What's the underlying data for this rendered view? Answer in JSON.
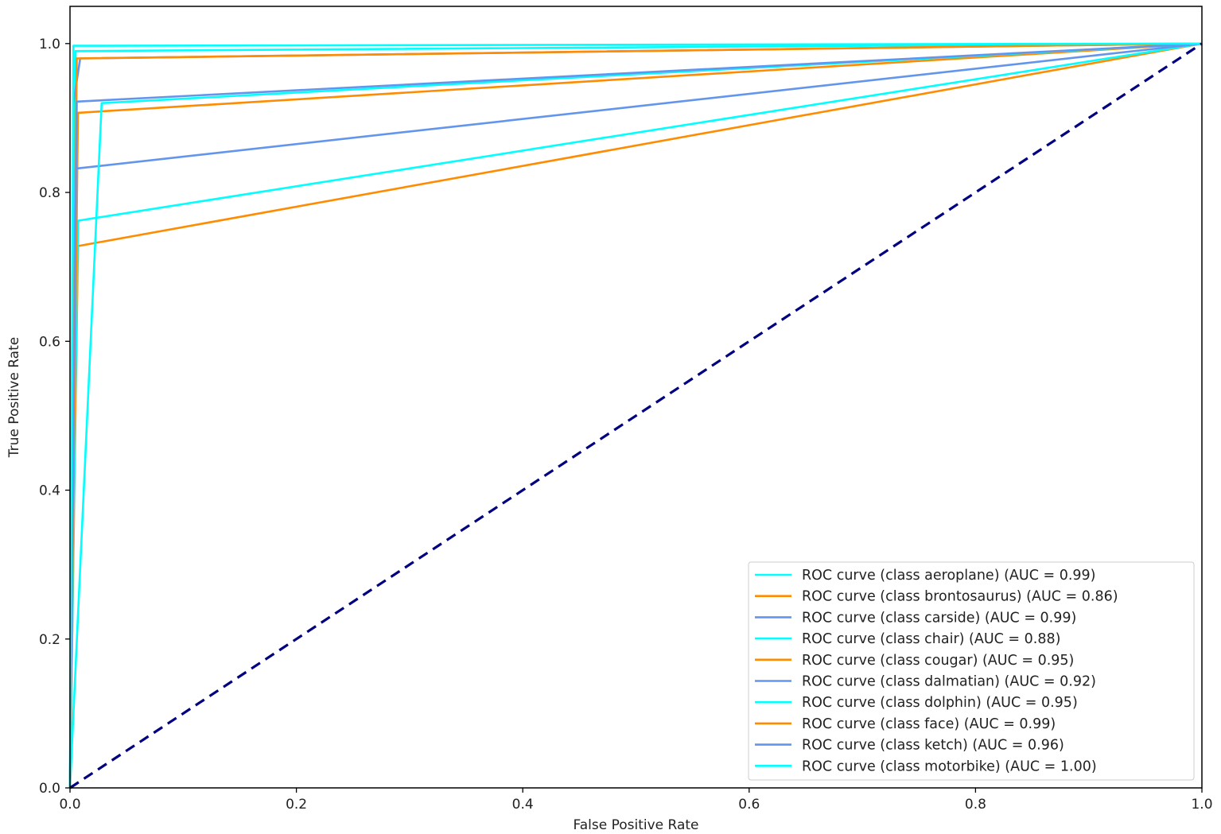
{
  "chart_data": {
    "type": "line",
    "title": "",
    "xlabel": "False Positive Rate",
    "ylabel": "True Positive Rate",
    "xlim": [
      0.0,
      1.0
    ],
    "ylim": [
      0.0,
      1.05
    ],
    "x_ticks": [
      "0.0",
      "0.2",
      "0.4",
      "0.6",
      "0.8",
      "1.0"
    ],
    "y_ticks": [
      "0.0",
      "0.2",
      "0.4",
      "0.6",
      "0.8",
      "1.0"
    ],
    "grid": false,
    "legend_position": "lower-right",
    "series": [
      {
        "name": "ROC curve (class aeroplane) (AUC = 0.99)",
        "color": "#00FFFF",
        "x": [
          0.0,
          0.0,
          0.005,
          1.0
        ],
        "y": [
          0.0,
          0.0,
          0.99,
          1.0
        ]
      },
      {
        "name": "ROC curve (class brontosaurus) (AUC = 0.86)",
        "color": "#FF8C00",
        "x": [
          0.0,
          0.007,
          1.0
        ],
        "y": [
          0.0,
          0.728,
          1.0
        ]
      },
      {
        "name": "ROC curve (class carside) (AUC = 0.99)",
        "color": "#6495ED",
        "x": [
          0.0,
          0.003,
          0.009,
          1.0
        ],
        "y": [
          0.0,
          0.92,
          0.98,
          1.0
        ]
      },
      {
        "name": "ROC curve (class chair) (AUC = 0.88)",
        "color": "#00FFFF",
        "x": [
          0.0,
          0.007,
          1.0
        ],
        "y": [
          0.0,
          0.762,
          1.0
        ]
      },
      {
        "name": "ROC curve (class cougar) (AUC = 0.95)",
        "color": "#FF8C00",
        "x": [
          0.0,
          0.007,
          1.0
        ],
        "y": [
          0.0,
          0.907,
          1.0
        ]
      },
      {
        "name": "ROC curve (class dalmatian) (AUC = 0.92)",
        "color": "#6495ED",
        "x": [
          0.0,
          0.005,
          1.0
        ],
        "y": [
          0.0,
          0.832,
          1.0
        ]
      },
      {
        "name": "ROC curve (class dolphin) (AUC = 0.95)",
        "color": "#00FFFF",
        "x": [
          0.0,
          0.028,
          1.0
        ],
        "y": [
          0.0,
          0.92,
          1.0
        ]
      },
      {
        "name": "ROC curve (class face) (AUC = 0.99)",
        "color": "#FF8C00",
        "x": [
          0.0,
          0.006,
          1.0
        ],
        "y": [
          0.0,
          0.98,
          1.0
        ]
      },
      {
        "name": "ROC curve (class ketch) (AUC = 0.96)",
        "color": "#6495ED",
        "x": [
          0.0,
          0.006,
          1.0
        ],
        "y": [
          0.0,
          0.922,
          1.0
        ]
      },
      {
        "name": "ROC curve (class motorbike) (AUC = 1.00)",
        "color": "#00FFFF",
        "x": [
          0.0,
          0.003,
          1.0
        ],
        "y": [
          0.0,
          0.997,
          1.0
        ]
      }
    ],
    "reference_line": {
      "style": "dashed",
      "color": "#000080",
      "x": [
        0.0,
        1.0
      ],
      "y": [
        0.0,
        1.0
      ]
    }
  }
}
